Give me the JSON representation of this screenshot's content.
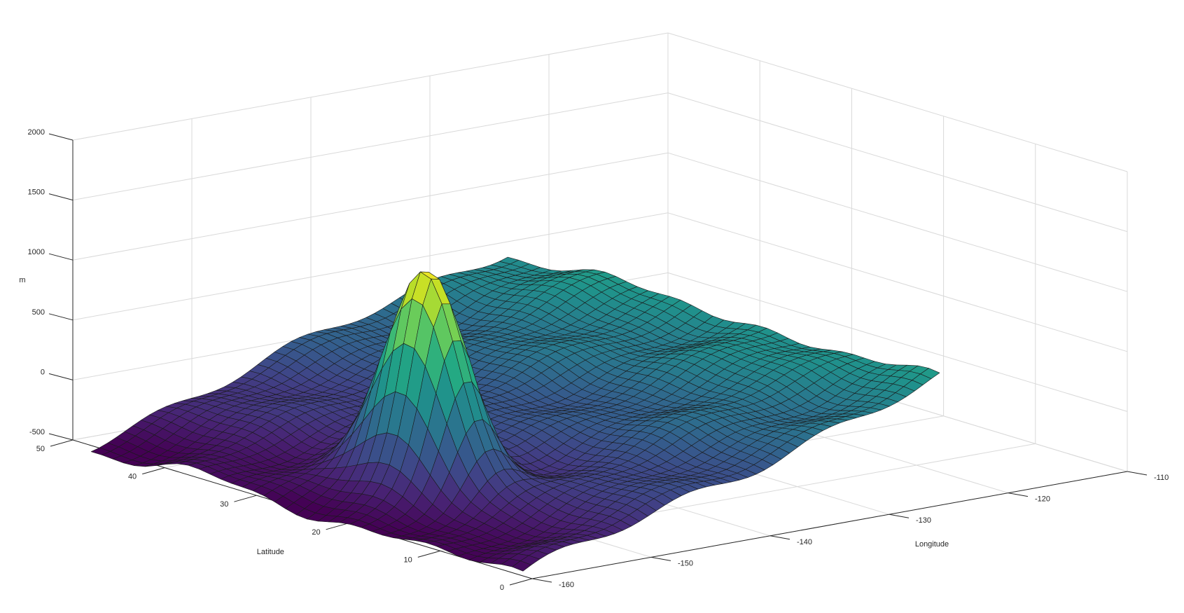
{
  "chart_data": {
    "type": "surface",
    "title": "",
    "xlabel": "Longitude",
    "ylabel": "Latitude",
    "zlabel": "m",
    "xlim": [
      -160,
      -110
    ],
    "ylim": [
      0,
      50
    ],
    "zlim": [
      -500,
      2000
    ],
    "x_ticks": [
      -160,
      -150,
      -140,
      -130,
      -120,
      -110
    ],
    "y_ticks": [
      0,
      10,
      20,
      30,
      40,
      50
    ],
    "z_ticks": [
      -500,
      0,
      500,
      1000,
      1500,
      2000
    ],
    "x_tick_labels": [
      "-160",
      "-150",
      "-140",
      "-130",
      "-120",
      "-110"
    ],
    "y_tick_labels": [
      "0",
      "10",
      "20",
      "30",
      "40",
      "50"
    ],
    "z_tick_labels": [
      "-500",
      "0",
      "500",
      "1000",
      "1500",
      "2000"
    ],
    "colormap": "viridis",
    "grid": true,
    "surface": {
      "x_range": [
        -160,
        -125
      ],
      "y_range": [
        1,
        48
      ],
      "base_at_x_min": -500,
      "base_at_x_max": 500,
      "peak": {
        "x": -152,
        "y": 22,
        "z": 1400
      }
    }
  }
}
